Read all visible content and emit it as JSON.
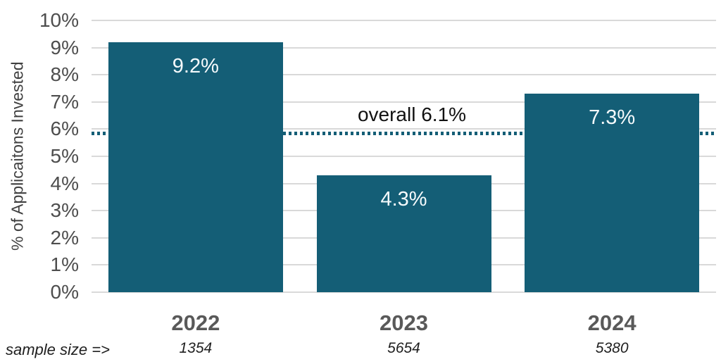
{
  "chart_data": {
    "type": "bar",
    "title": "",
    "xlabel": "",
    "ylabel": "% of Applicaitons Invested",
    "categories": [
      "2022",
      "2023",
      "2024"
    ],
    "values": [
      9.2,
      4.3,
      7.3
    ],
    "bar_labels": [
      "9.2%",
      "4.3%",
      "7.3%"
    ],
    "sample_sizes": [
      "1354",
      "5654",
      "5380"
    ],
    "sample_size_caption": "sample size =>",
    "overall_line": {
      "label": "overall 6.1%",
      "value": 6.1,
      "line_position_pct": 5.85,
      "style": "dotted"
    },
    "ylim": [
      0,
      10
    ],
    "y_tick_step": 1,
    "y_tick_suffix": "%",
    "grid": true,
    "legend": "none",
    "colors": {
      "bar": "#145E76",
      "overall_line": "#145E76",
      "gridline": "#d9d9d9",
      "tick_text": "#4d4d4d",
      "year_text": "#595959",
      "sample_text": "#1f1f1f",
      "bar_label_text": "#f5fafc",
      "annotation_text": "#111111",
      "background": "#ffffff"
    }
  }
}
